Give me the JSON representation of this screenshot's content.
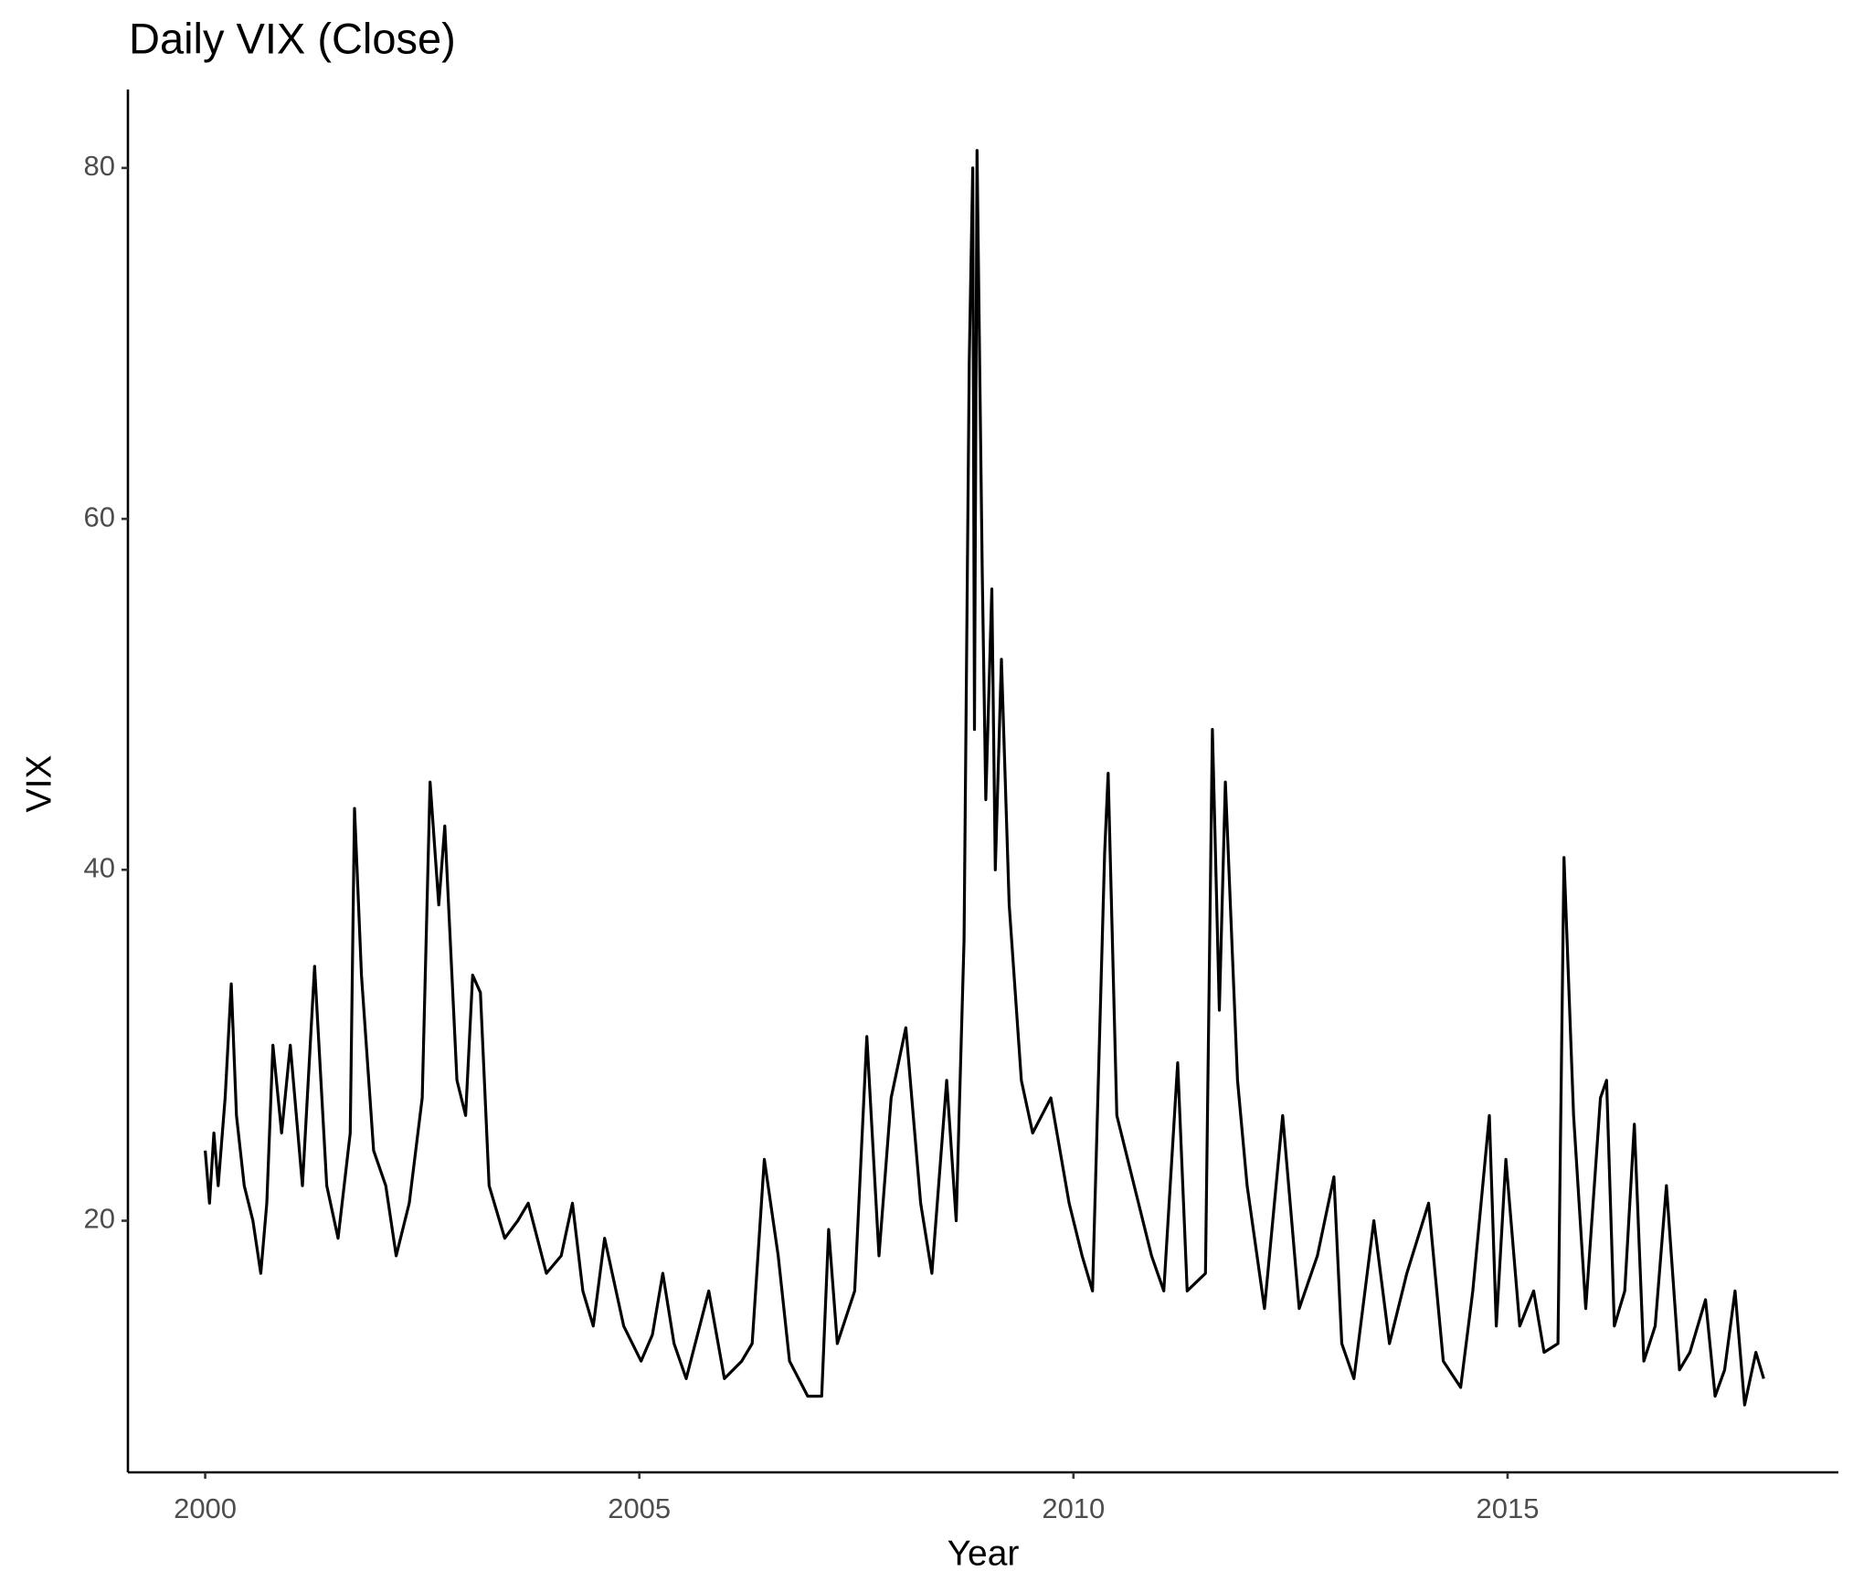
{
  "chart_data": {
    "type": "line",
    "title": "Daily VIX (Close)",
    "x_label": "Year",
    "y_label": "VIX",
    "color": "#000000",
    "x": [
      2000.0,
      2000.05,
      2000.1,
      2000.15,
      2000.23,
      2000.3,
      2000.36,
      2000.45,
      2000.55,
      2000.64,
      2000.71,
      2000.78,
      2000.88,
      2000.98,
      2001.12,
      2001.26,
      2001.4,
      2001.53,
      2001.67,
      2001.72,
      2001.8,
      2001.94,
      2002.08,
      2002.2,
      2002.35,
      2002.5,
      2002.59,
      2002.69,
      2002.76,
      2002.9,
      2003.0,
      2003.08,
      2003.17,
      2003.27,
      2003.45,
      2003.6,
      2003.72,
      2003.93,
      2004.1,
      2004.23,
      2004.35,
      2004.47,
      2004.6,
      2004.82,
      2005.02,
      2005.15,
      2005.27,
      2005.4,
      2005.54,
      2005.8,
      2005.98,
      2006.18,
      2006.3,
      2006.44,
      2006.6,
      2006.73,
      2006.94,
      2007.1,
      2007.18,
      2007.28,
      2007.48,
      2007.62,
      2007.76,
      2007.9,
      2008.07,
      2008.24,
      2008.37,
      2008.54,
      2008.65,
      2008.74,
      2008.8,
      2008.84,
      2008.86,
      2008.89,
      2008.95,
      2008.99,
      2009.06,
      2009.1,
      2009.17,
      2009.26,
      2009.4,
      2009.53,
      2009.74,
      2009.95,
      2010.1,
      2010.22,
      2010.36,
      2010.4,
      2010.5,
      2010.7,
      2010.9,
      2011.04,
      2011.2,
      2011.31,
      2011.52,
      2011.6,
      2011.68,
      2011.75,
      2011.89,
      2012.0,
      2012.2,
      2012.41,
      2012.6,
      2012.81,
      2013.0,
      2013.09,
      2013.23,
      2013.46,
      2013.64,
      2013.84,
      2014.09,
      2014.26,
      2014.46,
      2014.6,
      2014.79,
      2014.87,
      2014.98,
      2015.14,
      2015.3,
      2015.42,
      2015.58,
      2015.65,
      2015.76,
      2015.9,
      2016.07,
      2016.14,
      2016.23,
      2016.35,
      2016.46,
      2016.57,
      2016.7,
      2016.83,
      2016.98,
      2017.1,
      2017.28,
      2017.39,
      2017.5,
      2017.62,
      2017.73,
      2017.86,
      2017.95
    ],
    "values": [
      24,
      21,
      25,
      22,
      27,
      33.5,
      26,
      22,
      20,
      17,
      21,
      30,
      25,
      30,
      22,
      34.5,
      22,
      19,
      25,
      43.5,
      34,
      24,
      22,
      18,
      21,
      27,
      45,
      38,
      42.5,
      28,
      26,
      34,
      33,
      22,
      19,
      20,
      21,
      17,
      18,
      21,
      16,
      14,
      19,
      14,
      12,
      13.5,
      17,
      13,
      11,
      16,
      11,
      12,
      13,
      23.5,
      18,
      12,
      10,
      10,
      19.5,
      13,
      16,
      30.5,
      18,
      27,
      31,
      21,
      17,
      28,
      20,
      36,
      69,
      80,
      48,
      81,
      57,
      44,
      56,
      40,
      52,
      38,
      28,
      25,
      27,
      21,
      18,
      16,
      41,
      45.5,
      26,
      22,
      18,
      16,
      29,
      16,
      17,
      48,
      32,
      45,
      28,
      22,
      15,
      26,
      15,
      18,
      22.5,
      13,
      11,
      20,
      13,
      17,
      21,
      12,
      10.5,
      16,
      26,
      14,
      23.5,
      14,
      16,
      12.5,
      13,
      40.7,
      26,
      15,
      27,
      28,
      14,
      16,
      25.5,
      12,
      14,
      22,
      11.5,
      12.5,
      15.5,
      10,
      11.5,
      16,
      9.5,
      12.5,
      11
    ],
    "xlim": [
      1999.11,
      2018.81
    ],
    "ylim": [
      5.66,
      84.47
    ],
    "xticks": [
      2000,
      2005,
      2010,
      2015
    ],
    "yticks": [
      20,
      40,
      60,
      80
    ]
  }
}
